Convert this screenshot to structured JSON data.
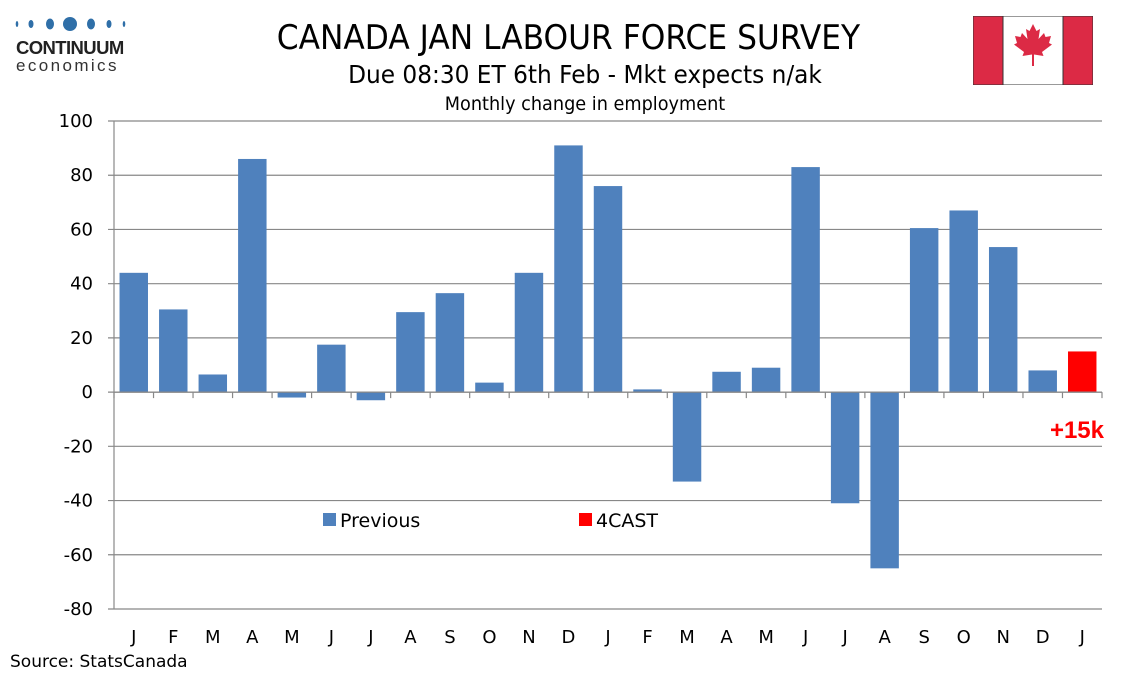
{
  "branding": {
    "logo_word": "CONTINUUM",
    "logo_sub": "economics",
    "logo_color": "#2f6fa8"
  },
  "header": {
    "title": "CANADA JAN LABOUR FORCE SURVEY",
    "subtitle": "Due 08:30 ET 6th Feb - Mkt expects n/ak",
    "flag": "canada-flag-icon"
  },
  "footer": {
    "source": "Source: StatsCanada"
  },
  "colors": {
    "previous": "#4f81bd",
    "forecast": "#ff0000",
    "grid": "#888888",
    "flag_red": "#dc2a45"
  },
  "chart_data": {
    "type": "bar",
    "title": "Monthly change in employment",
    "xlabel": "",
    "ylabel": "",
    "ylim": [
      -80,
      100
    ],
    "yticks": [
      100,
      80,
      60,
      40,
      20,
      0,
      -20,
      -40,
      -60,
      -80
    ],
    "grid": true,
    "legend_position": "bottom-center-inside",
    "categories": [
      "J",
      "F",
      "M",
      "A",
      "M",
      "J",
      "J",
      "A",
      "S",
      "O",
      "N",
      "D",
      "J",
      "F",
      "M",
      "A",
      "M",
      "J",
      "J",
      "A",
      "S",
      "O",
      "N",
      "D",
      "J"
    ],
    "series": [
      {
        "name": "Previous",
        "values": [
          44,
          30.5,
          6.5,
          86,
          -2,
          17.5,
          -3,
          29.5,
          36.5,
          3.5,
          44,
          91,
          76,
          1,
          -33,
          7.5,
          9,
          83,
          -41,
          -65,
          60.5,
          67,
          53.5,
          8,
          null
        ]
      },
      {
        "name": "4CAST",
        "values": [
          null,
          null,
          null,
          null,
          null,
          null,
          null,
          null,
          null,
          null,
          null,
          null,
          null,
          null,
          null,
          null,
          null,
          null,
          null,
          null,
          null,
          null,
          null,
          null,
          15
        ]
      }
    ],
    "annotations": [
      {
        "text": "+15k",
        "category_index": 24,
        "color": "#ff0000"
      }
    ]
  }
}
